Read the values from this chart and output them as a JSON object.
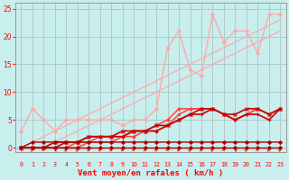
{
  "xlabel": "Vent moyen/en rafales ( km/h )",
  "background_color": "#c8eeed",
  "grid_color": "#aabbbb",
  "xlim": [
    -0.5,
    23.5
  ],
  "ylim": [
    -0.8,
    26
  ],
  "xticks": [
    0,
    1,
    2,
    3,
    4,
    5,
    6,
    7,
    8,
    9,
    10,
    11,
    12,
    13,
    14,
    15,
    16,
    17,
    18,
    19,
    20,
    21,
    22,
    23
  ],
  "yticks": [
    0,
    5,
    10,
    15,
    20,
    25
  ],
  "series": [
    {
      "x": [
        0,
        1,
        2,
        3,
        4,
        5,
        6,
        7,
        8,
        9,
        10,
        11,
        12,
        13,
        14,
        15,
        16,
        17,
        18,
        19,
        20,
        21,
        22,
        23
      ],
      "y": [
        0,
        0,
        0,
        1,
        2,
        3,
        4,
        5,
        6,
        7,
        8,
        9,
        10,
        11,
        12,
        13,
        14,
        15,
        16,
        17,
        18,
        19,
        20,
        21
      ],
      "color": "#ffaaaa",
      "lw": 0.9,
      "marker": null,
      "ms": 0,
      "alpha": 1.0
    },
    {
      "x": [
        0,
        1,
        2,
        3,
        4,
        5,
        6,
        7,
        8,
        9,
        10,
        11,
        12,
        13,
        14,
        15,
        16,
        17,
        18,
        19,
        20,
        21,
        22,
        23
      ],
      "y": [
        0,
        1,
        2,
        3,
        4,
        5,
        6,
        7,
        8,
        9,
        10,
        11,
        12,
        13,
        14,
        15,
        16,
        17,
        18,
        19,
        20,
        21,
        22,
        23
      ],
      "color": "#ffaaaa",
      "lw": 0.9,
      "marker": null,
      "ms": 0,
      "alpha": 1.0
    },
    {
      "x": [
        0,
        1,
        2,
        3,
        4,
        5,
        6,
        7,
        8,
        9,
        10,
        11,
        12,
        13,
        14,
        15,
        16,
        17,
        18,
        19,
        20,
        21,
        22,
        23
      ],
      "y": [
        3,
        7,
        5,
        3,
        5,
        5,
        5,
        5,
        5,
        4,
        5,
        5,
        7,
        18,
        21,
        14,
        13,
        24,
        19,
        21,
        21,
        17,
        24,
        24
      ],
      "color": "#ffaaaa",
      "lw": 1.0,
      "marker": "D",
      "ms": 2.0,
      "alpha": 1.0
    },
    {
      "x": [
        0,
        1,
        2,
        3,
        4,
        5,
        6,
        7,
        8,
        9,
        10,
        11,
        12,
        13,
        14,
        15,
        16,
        17,
        18,
        19,
        20,
        21,
        22,
        23
      ],
      "y": [
        0,
        0,
        0,
        0,
        0,
        0,
        1,
        1,
        1,
        2,
        2,
        3,
        4,
        5,
        7,
        7,
        7,
        7,
        6,
        5,
        6,
        7,
        6,
        7
      ],
      "color": "#ff4444",
      "lw": 1.1,
      "marker": "D",
      "ms": 1.8,
      "alpha": 1.0
    },
    {
      "x": [
        0,
        1,
        2,
        3,
        4,
        5,
        6,
        7,
        8,
        9,
        10,
        11,
        12,
        13,
        14,
        15,
        16,
        17,
        18,
        19,
        20,
        21,
        22,
        23
      ],
      "y": [
        0,
        0,
        0,
        0,
        0,
        1,
        1,
        2,
        2,
        2,
        3,
        3,
        3,
        4,
        6,
        7,
        7,
        7,
        6,
        5,
        6,
        7,
        6,
        7
      ],
      "color": "#ff4444",
      "lw": 1.1,
      "marker": "s",
      "ms": 1.8,
      "alpha": 1.0
    },
    {
      "x": [
        0,
        1,
        2,
        3,
        4,
        5,
        6,
        7,
        8,
        9,
        10,
        11,
        12,
        13,
        14,
        15,
        16,
        17,
        18,
        19,
        20,
        21,
        22,
        23
      ],
      "y": [
        0,
        0,
        0,
        0,
        1,
        1,
        2,
        2,
        2,
        2,
        3,
        3,
        3,
        4,
        5,
        6,
        6,
        7,
        6,
        5,
        6,
        6,
        5,
        7
      ],
      "color": "#cc0000",
      "lw": 1.2,
      "marker": "+",
      "ms": 3,
      "alpha": 1.0
    },
    {
      "x": [
        0,
        1,
        2,
        3,
        4,
        5,
        6,
        7,
        8,
        9,
        10,
        11,
        12,
        13,
        14,
        15,
        16,
        17,
        18,
        19,
        20,
        21,
        22,
        23
      ],
      "y": [
        0,
        0,
        0,
        1,
        1,
        1,
        2,
        2,
        2,
        3,
        3,
        3,
        4,
        4,
        5,
        6,
        7,
        7,
        6,
        6,
        7,
        7,
        6,
        7
      ],
      "color": "#cc0000",
      "lw": 1.2,
      "marker": "x",
      "ms": 3,
      "alpha": 1.0
    },
    {
      "x": [
        0,
        1,
        2,
        3,
        4,
        5,
        6,
        7,
        8,
        9,
        10,
        11,
        12,
        13,
        14,
        15,
        16,
        17,
        18,
        19,
        20,
        21,
        22,
        23
      ],
      "y": [
        0,
        1,
        1,
        1,
        1,
        1,
        1,
        1,
        1,
        1,
        1,
        1,
        1,
        1,
        1,
        1,
        1,
        1,
        1,
        1,
        1,
        1,
        1,
        1
      ],
      "color": "#aa0000",
      "lw": 1.0,
      "marker": "D",
      "ms": 2.0,
      "alpha": 1.0
    },
    {
      "x": [
        0,
        1,
        2,
        3,
        4,
        5,
        6,
        7,
        8,
        9,
        10,
        11,
        12,
        13,
        14,
        15,
        16,
        17,
        18,
        19,
        20,
        21,
        22,
        23
      ],
      "y": [
        0,
        0,
        0,
        0,
        0,
        0,
        0,
        0,
        0,
        0,
        0,
        0,
        0,
        0,
        0,
        0,
        0,
        0,
        0,
        0,
        0,
        0,
        0,
        0
      ],
      "color": "#aa0000",
      "lw": 1.0,
      "marker": "D",
      "ms": 2.0,
      "alpha": 1.0
    }
  ],
  "arrow_angles": [
    225,
    45,
    135,
    315,
    45,
    45,
    90,
    90,
    90,
    90,
    135,
    90,
    90,
    135,
    90,
    45,
    90,
    45,
    135,
    315,
    45,
    135,
    45,
    45
  ]
}
